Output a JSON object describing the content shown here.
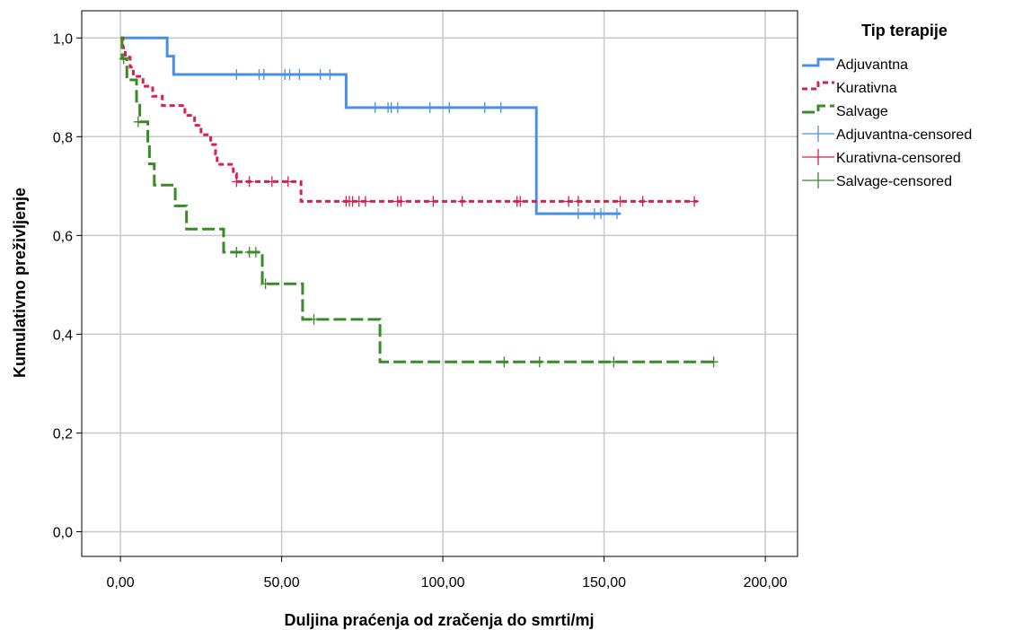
{
  "chart_data": {
    "type": "line",
    "title": "",
    "xlabel": "Duljina praćenja od zračenja do smrti/mj",
    "ylabel": "Kumulativno preživljenje",
    "xlim": [
      -12,
      210
    ],
    "ylim": [
      -0.05,
      1.055
    ],
    "xticks": [
      0,
      50,
      100,
      150,
      200
    ],
    "xtick_labels": [
      "0,00",
      "50,00",
      "100,00",
      "150,00",
      "200,00"
    ],
    "yticks": [
      0,
      0.2,
      0.4,
      0.6,
      0.8,
      1.0
    ],
    "ytick_labels": [
      "0,0",
      "0,2",
      "0,4",
      "0,6",
      "0,8",
      "1,0"
    ],
    "grid": true,
    "legend_title": "Tip terapije",
    "legend_position": "right",
    "series": [
      {
        "name": "Adjuvantna",
        "color": "#4a90e2",
        "dash": "solid",
        "steps": [
          [
            0,
            1.0
          ],
          [
            14.5,
            0.963
          ],
          [
            16.5,
            0.926
          ],
          [
            70,
            0.859
          ],
          [
            129,
            0.644
          ],
          [
            155,
            0.644
          ]
        ]
      },
      {
        "name": "Kurativna",
        "color": "#d6204e",
        "dash": "dotted",
        "steps": [
          [
            0,
            1.0
          ],
          [
            0.8,
            0.98
          ],
          [
            1.5,
            0.961
          ],
          [
            3,
            0.941
          ],
          [
            4,
            0.922
          ],
          [
            7,
            0.902
          ],
          [
            10,
            0.882
          ],
          [
            13,
            0.863
          ],
          [
            20,
            0.843
          ],
          [
            23,
            0.823
          ],
          [
            25,
            0.804
          ],
          [
            28,
            0.784
          ],
          [
            29.5,
            0.765
          ],
          [
            30,
            0.744
          ],
          [
            35,
            0.725
          ],
          [
            36,
            0.709
          ],
          [
            56,
            0.669
          ],
          [
            179,
            0.669
          ]
        ]
      },
      {
        "name": "Salvage",
        "color": "#3a8a2a",
        "dash": "dashed",
        "steps": [
          [
            0,
            1.0
          ],
          [
            0.5,
            0.958
          ],
          [
            2,
            0.915
          ],
          [
            5,
            0.872
          ],
          [
            6,
            0.83
          ],
          [
            8.5,
            0.787
          ],
          [
            9,
            0.745
          ],
          [
            10.5,
            0.702
          ],
          [
            17,
            0.66
          ],
          [
            20.5,
            0.613
          ],
          [
            32,
            0.566
          ],
          [
            44,
            0.502
          ],
          [
            56.5,
            0.43
          ],
          [
            80.5,
            0.344
          ],
          [
            185,
            0.344
          ]
        ]
      }
    ],
    "censored": [
      {
        "name": "Adjuvantna-censored",
        "color": "#4a90e2",
        "series": 0,
        "points": [
          [
            36,
            0.926
          ],
          [
            43,
            0.926
          ],
          [
            44.5,
            0.926
          ],
          [
            51,
            0.926
          ],
          [
            52.5,
            0.926
          ],
          [
            55.5,
            0.926
          ],
          [
            62,
            0.926
          ],
          [
            65,
            0.926
          ],
          [
            79,
            0.859
          ],
          [
            83,
            0.859
          ],
          [
            84,
            0.859
          ],
          [
            86,
            0.859
          ],
          [
            96,
            0.859
          ],
          [
            102,
            0.859
          ],
          [
            113,
            0.859
          ],
          [
            118,
            0.859
          ],
          [
            142,
            0.644
          ],
          [
            147,
            0.644
          ],
          [
            149,
            0.644
          ],
          [
            154,
            0.644
          ]
        ]
      },
      {
        "name": "Kurativna-censored",
        "color": "#d6204e",
        "series": 1,
        "points": [
          [
            36,
            0.709
          ],
          [
            40,
            0.709
          ],
          [
            47,
            0.709
          ],
          [
            52,
            0.709
          ],
          [
            70,
            0.669
          ],
          [
            71,
            0.669
          ],
          [
            72,
            0.669
          ],
          [
            74,
            0.669
          ],
          [
            76,
            0.669
          ],
          [
            86,
            0.669
          ],
          [
            87,
            0.669
          ],
          [
            97,
            0.669
          ],
          [
            106,
            0.669
          ],
          [
            123,
            0.669
          ],
          [
            124,
            0.669
          ],
          [
            139,
            0.669
          ],
          [
            142,
            0.669
          ],
          [
            155,
            0.669
          ],
          [
            162,
            0.669
          ],
          [
            178,
            0.669
          ]
        ]
      },
      {
        "name": "Salvage-censored",
        "color": "#3a8a2a",
        "series": 2,
        "points": [
          [
            1,
            0.958
          ],
          [
            5.5,
            0.83
          ],
          [
            36,
            0.566
          ],
          [
            40,
            0.566
          ],
          [
            42,
            0.566
          ],
          [
            45,
            0.502
          ],
          [
            60,
            0.43
          ],
          [
            119,
            0.344
          ],
          [
            130,
            0.344
          ],
          [
            153,
            0.344
          ],
          [
            184,
            0.344
          ]
        ]
      }
    ]
  }
}
